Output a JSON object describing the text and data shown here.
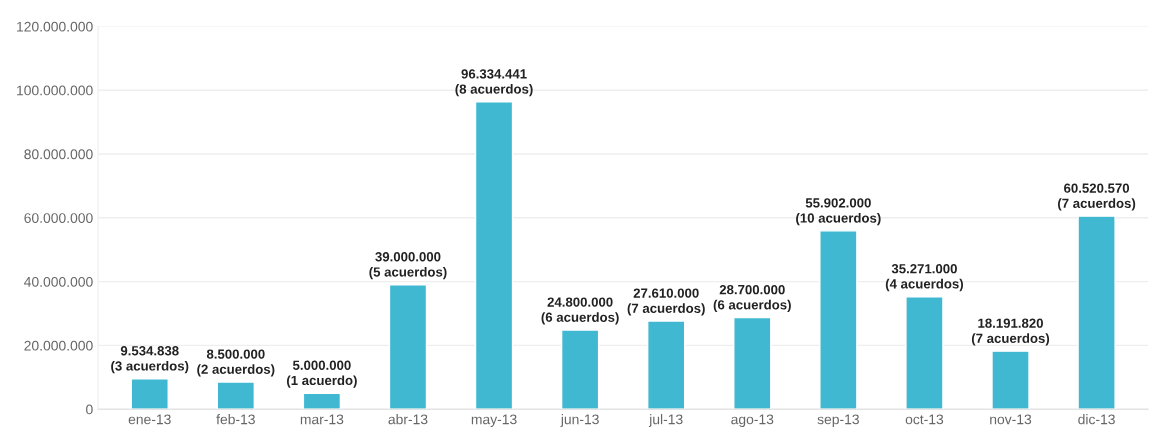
{
  "chart_data": {
    "type": "bar",
    "categories": [
      "ene-13",
      "feb-13",
      "mar-13",
      "abr-13",
      "may-13",
      "jun-13",
      "jul-13",
      "ago-13",
      "sep-13",
      "oct-13",
      "nov-13",
      "dic-13"
    ],
    "values": [
      9534838,
      8500000,
      5000000,
      39000000,
      96334441,
      24800000,
      27610000,
      28700000,
      55902000,
      35271000,
      18191820,
      60520570
    ],
    "value_labels": [
      "9.534.838\n(3 acuerdos)",
      "8.500.000\n(2 acuerdos)",
      "5.000.000\n(1 acuerdo)",
      "39.000.000\n(5 acuerdos)",
      "96.334.441\n(8 acuerdos)",
      "24.800.000\n(6 acuerdos)",
      "27.610.000\n(7 acuerdos)",
      "28.700.000\n(6 acuerdos)",
      "55.902.000\n(10 acuerdos)",
      "35.271.000\n(4 acuerdos)",
      "18.191.820\n(7 acuerdos)",
      "60.520.570\n(7 acuerdos)"
    ],
    "color": "#41b8d2",
    "ylim": [
      0,
      120000000
    ],
    "yticks": [
      {
        "value": 0,
        "label": "0"
      },
      {
        "value": 20000000,
        "label": "20.000.000"
      },
      {
        "value": 40000000,
        "label": "40.000.000"
      },
      {
        "value": 60000000,
        "label": "60.000.000"
      },
      {
        "value": 80000000,
        "label": "80.000.000"
      },
      {
        "value": 100000000,
        "label": "100.000.000"
      },
      {
        "value": 120000000,
        "label": "120.000.000"
      }
    ],
    "grid": "y"
  }
}
